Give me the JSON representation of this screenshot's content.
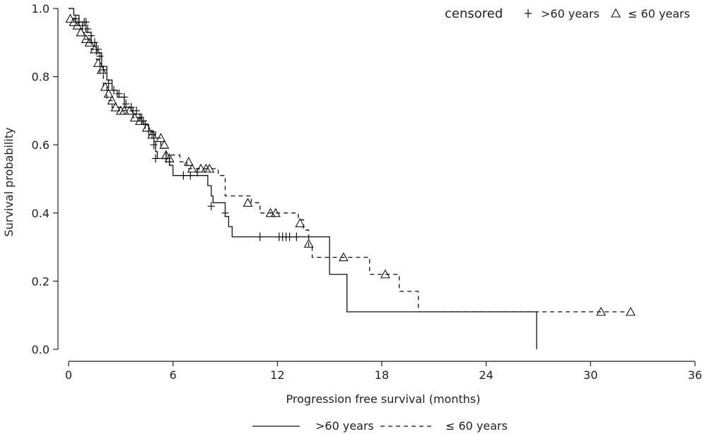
{
  "chart_data": {
    "type": "line",
    "subtype": "kaplan-meier step plot",
    "title": "",
    "xlabel": "Progression free survival (months)",
    "ylabel": "Survival probability",
    "xlim": [
      0,
      36
    ],
    "ylim": [
      0,
      1
    ],
    "x_ticks": [
      0,
      6,
      12,
      18,
      24,
      30,
      36
    ],
    "x_tick_labels": [
      "0",
      "6",
      "12",
      "18",
      "24",
      "30",
      "36"
    ],
    "y_ticks": [
      0,
      0.2,
      0.4,
      0.6,
      0.8,
      1.0
    ],
    "y_tick_labels": [
      "0.0",
      "0.2",
      "0.4",
      "0.6",
      "0.8",
      "1.0"
    ],
    "grid": false,
    "legend": {
      "placement": "bottom",
      "entries": [
        {
          "label": ">60 years",
          "line_style": "solid"
        },
        {
          "label": "≤ 60 years",
          "line_style": "dashed"
        }
      ]
    },
    "censor_key": {
      "placement": "top-right",
      "title": "censored",
      "entries": [
        {
          "symbol": "+",
          "label": ">60 years"
        },
        {
          "symbol": "triangle",
          "label": "≤ 60 years"
        }
      ]
    },
    "series": [
      {
        "name": ">60 years",
        "line_style": "solid",
        "color": "#111111",
        "censor_marker": "plus",
        "steps": [
          [
            0,
            1.0
          ],
          [
            0.3,
            0.98
          ],
          [
            0.6,
            0.96
          ],
          [
            1.0,
            0.93
          ],
          [
            1.3,
            0.9
          ],
          [
            1.6,
            0.87
          ],
          [
            1.9,
            0.83
          ],
          [
            2.2,
            0.79
          ],
          [
            2.5,
            0.76
          ],
          [
            2.8,
            0.74
          ],
          [
            3.2,
            0.71
          ],
          [
            3.7,
            0.69
          ],
          [
            4.2,
            0.66
          ],
          [
            4.6,
            0.64
          ],
          [
            4.9,
            0.61
          ],
          [
            5.0,
            0.58
          ],
          [
            5.1,
            0.56
          ],
          [
            5.8,
            0.54
          ],
          [
            6.0,
            0.51
          ],
          [
            8.0,
            0.48
          ],
          [
            8.2,
            0.45
          ],
          [
            8.3,
            0.43
          ],
          [
            9.0,
            0.39
          ],
          [
            9.2,
            0.36
          ],
          [
            9.4,
            0.33
          ],
          [
            15.0,
            0.22
          ],
          [
            16.0,
            0.11
          ],
          [
            26.9,
            0.0
          ]
        ],
        "censored": [
          [
            0.4,
            0.97
          ],
          [
            0.6,
            0.96
          ],
          [
            0.8,
            0.95
          ],
          [
            0.9,
            0.96
          ],
          [
            1.0,
            0.96
          ],
          [
            1.1,
            0.94
          ],
          [
            1.3,
            0.92
          ],
          [
            1.5,
            0.9
          ],
          [
            1.7,
            0.88
          ],
          [
            1.8,
            0.86
          ],
          [
            2.0,
            0.82
          ],
          [
            2.3,
            0.78
          ],
          [
            2.6,
            0.76
          ],
          [
            2.9,
            0.75
          ],
          [
            3.2,
            0.74
          ],
          [
            3.3,
            0.72
          ],
          [
            3.6,
            0.71
          ],
          [
            3.9,
            0.7
          ],
          [
            4.1,
            0.68
          ],
          [
            4.3,
            0.67
          ],
          [
            4.4,
            0.66
          ],
          [
            4.6,
            0.64
          ],
          [
            4.8,
            0.63
          ],
          [
            4.9,
            0.6
          ],
          [
            5.0,
            0.56
          ],
          [
            5.6,
            0.56
          ],
          [
            5.8,
            0.55
          ],
          [
            6.6,
            0.51
          ],
          [
            7.0,
            0.51
          ],
          [
            7.4,
            0.52
          ],
          [
            8.2,
            0.42
          ],
          [
            9.0,
            0.4
          ],
          [
            11.0,
            0.33
          ],
          [
            12.1,
            0.33
          ],
          [
            12.3,
            0.33
          ],
          [
            12.5,
            0.33
          ],
          [
            12.7,
            0.33
          ],
          [
            13.1,
            0.33
          ]
        ]
      },
      {
        "name": "≤ 60 years",
        "line_style": "dashed",
        "color": "#111111",
        "censor_marker": "triangle",
        "steps": [
          [
            0,
            1.0
          ],
          [
            0.3,
            0.97
          ],
          [
            0.6,
            0.94
          ],
          [
            0.9,
            0.91
          ],
          [
            1.3,
            0.88
          ],
          [
            1.6,
            0.85
          ],
          [
            1.8,
            0.81
          ],
          [
            2.0,
            0.77
          ],
          [
            2.2,
            0.73
          ],
          [
            2.5,
            0.71
          ],
          [
            3.0,
            0.7
          ],
          [
            3.7,
            0.68
          ],
          [
            4.2,
            0.66
          ],
          [
            4.6,
            0.64
          ],
          [
            5.0,
            0.62
          ],
          [
            5.3,
            0.59
          ],
          [
            5.6,
            0.57
          ],
          [
            6.4,
            0.55
          ],
          [
            6.8,
            0.53
          ],
          [
            7.2,
            0.53
          ],
          [
            8.6,
            0.51
          ],
          [
            9.0,
            0.45
          ],
          [
            10.5,
            0.43
          ],
          [
            11.0,
            0.4
          ],
          [
            13.2,
            0.38
          ],
          [
            13.5,
            0.35
          ],
          [
            13.8,
            0.3
          ],
          [
            14.0,
            0.27
          ],
          [
            17.3,
            0.22
          ],
          [
            19.0,
            0.17
          ],
          [
            20.1,
            0.11
          ],
          [
            32.0,
            0.11
          ]
        ],
        "censored": [
          [
            0.1,
            0.97
          ],
          [
            0.3,
            0.96
          ],
          [
            0.5,
            0.95
          ],
          [
            0.7,
            0.93
          ],
          [
            1.0,
            0.91
          ],
          [
            1.2,
            0.9
          ],
          [
            1.5,
            0.88
          ],
          [
            1.7,
            0.84
          ],
          [
            1.9,
            0.82
          ],
          [
            2.1,
            0.77
          ],
          [
            2.3,
            0.75
          ],
          [
            2.5,
            0.73
          ],
          [
            2.7,
            0.71
          ],
          [
            3.0,
            0.7
          ],
          [
            3.2,
            0.7
          ],
          [
            3.5,
            0.7
          ],
          [
            3.8,
            0.68
          ],
          [
            4.1,
            0.67
          ],
          [
            4.5,
            0.65
          ],
          [
            4.8,
            0.63
          ],
          [
            5.3,
            0.62
          ],
          [
            5.5,
            0.6
          ],
          [
            5.6,
            0.57
          ],
          [
            5.8,
            0.56
          ],
          [
            6.9,
            0.55
          ],
          [
            7.1,
            0.53
          ],
          [
            7.6,
            0.53
          ],
          [
            7.9,
            0.53
          ],
          [
            8.1,
            0.53
          ],
          [
            10.3,
            0.43
          ],
          [
            11.6,
            0.4
          ],
          [
            11.9,
            0.4
          ],
          [
            13.3,
            0.37
          ],
          [
            13.8,
            0.31
          ],
          [
            15.8,
            0.27
          ],
          [
            18.2,
            0.22
          ],
          [
            30.6,
            0.11
          ],
          [
            32.3,
            0.11
          ]
        ]
      }
    ]
  }
}
